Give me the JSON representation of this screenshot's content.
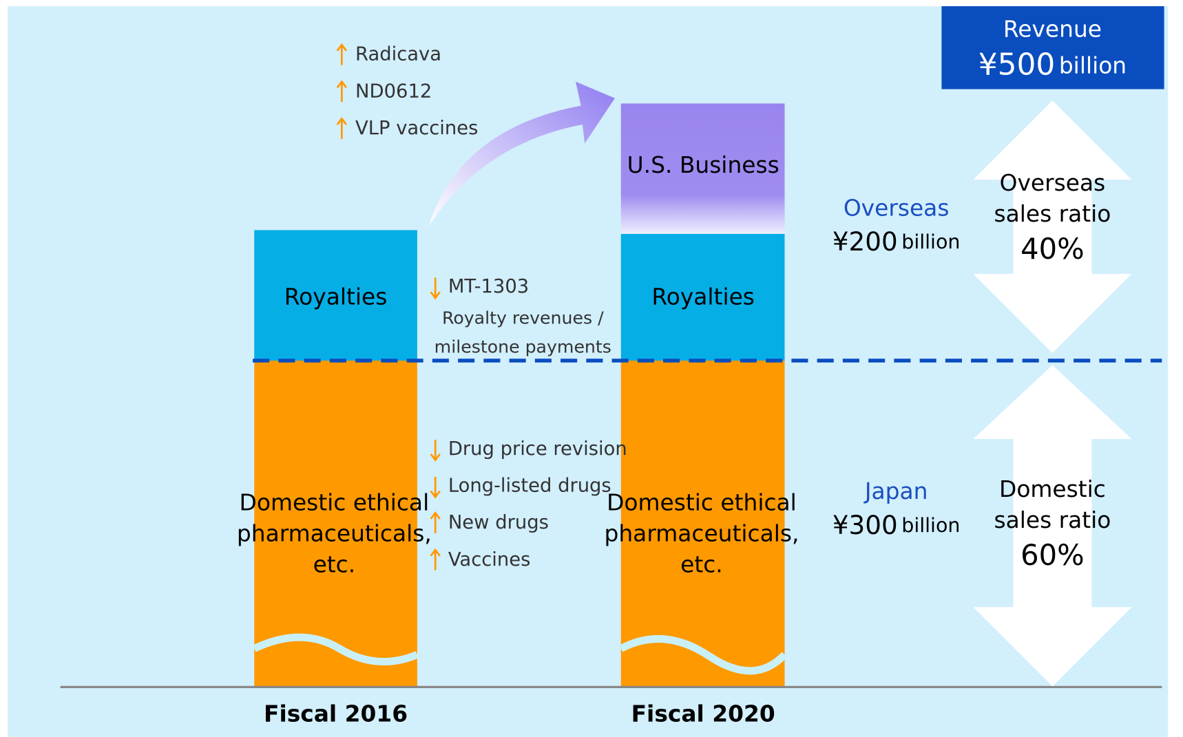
{
  "revenue": {
    "label": "Revenue",
    "amount": "¥500",
    "unit": "billion"
  },
  "bars": [
    {
      "label": "Fiscal 2016",
      "royalties": "Royalties",
      "domestic": [
        "Domestic ethical",
        "pharmaceuticals,",
        "etc."
      ]
    },
    {
      "label": "Fiscal 2020",
      "us": "U.S. Business",
      "royalties": "Royalties",
      "domestic": [
        "Domestic ethical",
        "pharmaceuticals,",
        "etc."
      ]
    }
  ],
  "us_drivers": [
    "Radicava",
    "ND0612",
    "VLP vaccines"
  ],
  "royalty_drivers": {
    "item": "MT-1303",
    "note": [
      "Royalty revenues /",
      "milestone payments"
    ]
  },
  "domestic_drivers": [
    {
      "dir": "down",
      "text": "Drug price revision"
    },
    {
      "dir": "down",
      "text": "Long-listed drugs"
    },
    {
      "dir": "up",
      "text": "New drugs"
    },
    {
      "dir": "up",
      "text": "Vaccines"
    }
  ],
  "regions": [
    {
      "name": "Overseas",
      "amount": "¥200",
      "unit": "billion",
      "ratio": [
        "Overseas",
        "sales ratio"
      ],
      "percent": "40%"
    },
    {
      "name": "Japan",
      "amount": "¥300",
      "unit": "billion",
      "ratio": [
        "Domestic",
        "sales ratio"
      ],
      "percent": "60%"
    }
  ]
}
